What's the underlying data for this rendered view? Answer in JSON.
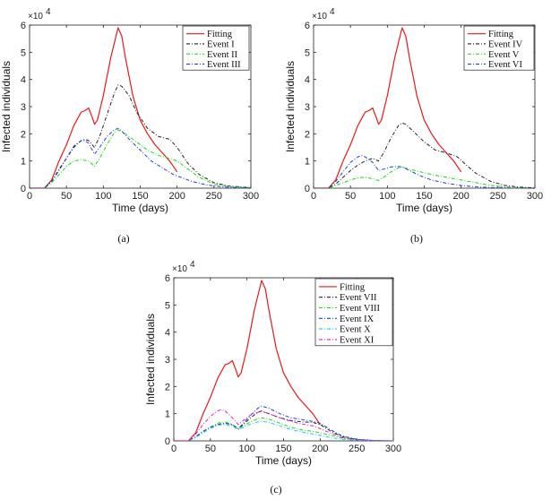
{
  "chart_data": [
    {
      "type": "line",
      "caption": "(a)",
      "xlabel": "Time (days)",
      "ylabel": "Infected individuals",
      "y_multiplier": "×10",
      "y_multiplier_exp": "4",
      "xlim": [
        0,
        300
      ],
      "ylim": [
        0,
        6
      ],
      "xticks": [
        "0",
        "50",
        "100",
        "150",
        "200",
        "250",
        "300"
      ],
      "yticks": [
        "0",
        "1",
        "2",
        "3",
        "4",
        "5",
        "6"
      ],
      "legend_position": "top-right",
      "series": [
        {
          "name": "Fitting",
          "color": "#e41a1c",
          "dash": "solid",
          "x": [
            0,
            20,
            30,
            40,
            50,
            60,
            70,
            75,
            80,
            85,
            88,
            92,
            100,
            110,
            120,
            125,
            130,
            140,
            150,
            160,
            170,
            180,
            190,
            200
          ],
          "y": [
            0,
            0,
            0.3,
            1.0,
            1.6,
            2.3,
            2.8,
            2.85,
            2.95,
            2.6,
            2.35,
            2.5,
            3.4,
            4.8,
            5.9,
            5.6,
            4.8,
            3.4,
            2.5,
            2.0,
            1.6,
            1.3,
            1.0,
            0.6
          ]
        },
        {
          "name": "Event I",
          "color": "#222222",
          "dash": "dashdot",
          "x": [
            0,
            20,
            30,
            40,
            50,
            60,
            70,
            75,
            80,
            88,
            95,
            105,
            115,
            120,
            125,
            135,
            145,
            160,
            175,
            190,
            200,
            215,
            230,
            250,
            270,
            300
          ],
          "y": [
            0,
            0,
            0.25,
            0.7,
            1.1,
            1.5,
            1.75,
            1.8,
            1.75,
            1.5,
            1.9,
            2.7,
            3.5,
            3.8,
            3.75,
            3.4,
            2.8,
            2.2,
            1.9,
            1.8,
            1.5,
            0.9,
            0.5,
            0.2,
            0.08,
            0.02
          ]
        },
        {
          "name": "Event II",
          "color": "#1fd01f",
          "dash": "dashdot",
          "x": [
            0,
            20,
            30,
            40,
            50,
            60,
            70,
            80,
            88,
            95,
            105,
            115,
            120,
            130,
            145,
            160,
            175,
            190,
            200,
            215,
            230,
            250,
            270,
            300
          ],
          "y": [
            0,
            0,
            0.2,
            0.5,
            0.8,
            1.0,
            1.05,
            1.0,
            0.8,
            1.1,
            1.6,
            2.05,
            2.15,
            2.0,
            1.7,
            1.4,
            1.2,
            1.1,
            1.0,
            0.7,
            0.4,
            0.15,
            0.06,
            0.02
          ]
        },
        {
          "name": "Event III",
          "color": "#2040d0",
          "dash": "dashdot",
          "x": [
            0,
            20,
            30,
            40,
            50,
            60,
            70,
            75,
            80,
            88,
            95,
            105,
            115,
            120,
            125,
            135,
            150,
            165,
            180,
            195,
            205,
            220,
            240,
            260,
            280,
            300
          ],
          "y": [
            0,
            0,
            0.25,
            0.65,
            1.1,
            1.55,
            1.75,
            1.75,
            1.65,
            1.25,
            1.5,
            1.9,
            2.15,
            2.2,
            2.1,
            1.8,
            1.4,
            1.0,
            0.75,
            0.5,
            0.4,
            0.25,
            0.12,
            0.05,
            0.02,
            0
          ]
        }
      ]
    },
    {
      "type": "line",
      "caption": "(b)",
      "xlabel": "Time (days)",
      "ylabel": "Infected individuals",
      "y_multiplier": "×10",
      "y_multiplier_exp": "4",
      "xlim": [
        0,
        300
      ],
      "ylim": [
        0,
        6
      ],
      "xticks": [
        "0",
        "50",
        "100",
        "150",
        "200",
        "250",
        "300"
      ],
      "yticks": [
        "0",
        "1",
        "2",
        "3",
        "4",
        "5",
        "6"
      ],
      "legend_position": "top-right",
      "series": [
        {
          "name": "Fitting",
          "color": "#e41a1c",
          "dash": "solid",
          "x": [
            0,
            20,
            30,
            40,
            50,
            60,
            70,
            75,
            80,
            85,
            88,
            92,
            100,
            110,
            120,
            125,
            130,
            140,
            150,
            160,
            170,
            180,
            190,
            200
          ],
          "y": [
            0,
            0,
            0.3,
            1.0,
            1.6,
            2.3,
            2.8,
            2.85,
            2.95,
            2.6,
            2.35,
            2.5,
            3.4,
            4.8,
            5.9,
            5.6,
            4.8,
            3.4,
            2.5,
            2.0,
            1.6,
            1.3,
            1.0,
            0.6
          ]
        },
        {
          "name": "Event IV",
          "color": "#222222",
          "dash": "dashdot",
          "x": [
            0,
            20,
            30,
            40,
            50,
            60,
            70,
            80,
            88,
            95,
            105,
            115,
            120,
            125,
            135,
            150,
            165,
            180,
            195,
            205,
            220,
            240,
            260,
            280,
            300
          ],
          "y": [
            0,
            0,
            0.15,
            0.4,
            0.65,
            0.85,
            1.0,
            1.1,
            1.0,
            1.3,
            1.85,
            2.3,
            2.4,
            2.35,
            2.1,
            1.7,
            1.4,
            1.3,
            1.15,
            0.9,
            0.55,
            0.25,
            0.1,
            0.04,
            0.01
          ]
        },
        {
          "name": "Event V",
          "color": "#1fd01f",
          "dash": "dashdot",
          "x": [
            0,
            20,
            30,
            40,
            50,
            60,
            70,
            80,
            88,
            95,
            105,
            115,
            120,
            130,
            145,
            160,
            180,
            200,
            220,
            240,
            260,
            280,
            300
          ],
          "y": [
            0,
            0,
            0.1,
            0.2,
            0.3,
            0.38,
            0.4,
            0.35,
            0.28,
            0.4,
            0.6,
            0.75,
            0.78,
            0.7,
            0.6,
            0.5,
            0.4,
            0.3,
            0.2,
            0.1,
            0.05,
            0.02,
            0
          ]
        },
        {
          "name": "Event VI",
          "color": "#2040d0",
          "dash": "dashdot",
          "x": [
            0,
            20,
            30,
            40,
            50,
            60,
            65,
            70,
            80,
            88,
            95,
            105,
            115,
            120,
            130,
            145,
            160,
            180,
            200,
            220,
            240,
            260,
            280,
            300
          ],
          "y": [
            0,
            0,
            0.25,
            0.6,
            0.95,
            1.15,
            1.2,
            1.15,
            0.95,
            0.65,
            0.7,
            0.78,
            0.8,
            0.78,
            0.65,
            0.45,
            0.3,
            0.18,
            0.1,
            0.05,
            0.02,
            0.01,
            0,
            0
          ]
        }
      ]
    },
    {
      "type": "line",
      "caption": "(c)",
      "xlabel": "Time (days)",
      "ylabel": "Infected individuals",
      "y_multiplier": "×10",
      "y_multiplier_exp": "4",
      "xlim": [
        0,
        300
      ],
      "ylim": [
        0,
        6
      ],
      "xticks": [
        "0",
        "50",
        "100",
        "150",
        "200",
        "250",
        "300"
      ],
      "yticks": [
        "0",
        "1",
        "2",
        "3",
        "4",
        "5",
        "6"
      ],
      "legend_position": "top-right",
      "series": [
        {
          "name": "Fitting",
          "color": "#e41a1c",
          "dash": "solid",
          "x": [
            0,
            20,
            30,
            40,
            50,
            60,
            70,
            75,
            80,
            85,
            88,
            92,
            100,
            110,
            120,
            125,
            130,
            140,
            150,
            160,
            170,
            180,
            190,
            200
          ],
          "y": [
            0,
            0,
            0.3,
            1.0,
            1.6,
            2.3,
            2.8,
            2.85,
            2.95,
            2.6,
            2.35,
            2.5,
            3.4,
            4.8,
            5.9,
            5.6,
            4.8,
            3.4,
            2.5,
            2.0,
            1.6,
            1.3,
            1.0,
            0.6
          ]
        },
        {
          "name": "Event VII",
          "color": "#222222",
          "dash": "dashdot",
          "x": [
            0,
            20,
            30,
            40,
            50,
            60,
            70,
            80,
            88,
            95,
            105,
            115,
            120,
            130,
            145,
            160,
            175,
            190,
            200,
            215,
            230,
            250,
            270,
            300
          ],
          "y": [
            0,
            0,
            0.15,
            0.35,
            0.5,
            0.6,
            0.65,
            0.6,
            0.45,
            0.6,
            0.85,
            1.05,
            1.1,
            1.0,
            0.85,
            0.75,
            0.7,
            0.68,
            0.6,
            0.35,
            0.15,
            0.05,
            0.02,
            0
          ]
        },
        {
          "name": "Event VIII",
          "color": "#1fd01f",
          "dash": "dashdot",
          "x": [
            0,
            20,
            30,
            40,
            50,
            60,
            70,
            80,
            88,
            95,
            105,
            115,
            120,
            130,
            145,
            160,
            175,
            190,
            200,
            215,
            230,
            250,
            270,
            300
          ],
          "y": [
            0,
            0,
            0.15,
            0.35,
            0.5,
            0.65,
            0.7,
            0.6,
            0.45,
            0.55,
            0.7,
            0.82,
            0.85,
            0.8,
            0.65,
            0.5,
            0.4,
            0.35,
            0.3,
            0.2,
            0.1,
            0.04,
            0.01,
            0
          ]
        },
        {
          "name": "Event IX",
          "color": "#2040d0",
          "dash": "dashdot",
          "x": [
            0,
            20,
            30,
            40,
            50,
            60,
            70,
            80,
            88,
            95,
            105,
            115,
            120,
            130,
            145,
            160,
            175,
            190,
            200,
            215,
            230,
            250,
            270,
            300
          ],
          "y": [
            0,
            0,
            0.15,
            0.35,
            0.5,
            0.6,
            0.65,
            0.6,
            0.45,
            0.65,
            0.95,
            1.2,
            1.28,
            1.2,
            1.0,
            0.85,
            0.78,
            0.72,
            0.65,
            0.4,
            0.18,
            0.06,
            0.02,
            0
          ]
        },
        {
          "name": "Event X",
          "color": "#20c8e0",
          "dash": "dashdot",
          "x": [
            0,
            20,
            30,
            40,
            50,
            60,
            70,
            80,
            88,
            95,
            105,
            115,
            120,
            130,
            145,
            160,
            175,
            190,
            200,
            215,
            230,
            250,
            270,
            300
          ],
          "y": [
            0,
            0,
            0.12,
            0.3,
            0.45,
            0.58,
            0.6,
            0.55,
            0.4,
            0.5,
            0.62,
            0.7,
            0.72,
            0.68,
            0.55,
            0.42,
            0.32,
            0.25,
            0.2,
            0.12,
            0.06,
            0.02,
            0.01,
            0
          ]
        },
        {
          "name": "Event XI",
          "color": "#e020c8",
          "dash": "dashdot",
          "x": [
            0,
            20,
            30,
            40,
            50,
            60,
            65,
            70,
            80,
            88,
            95,
            105,
            115,
            120,
            130,
            145,
            160,
            175,
            190,
            200,
            215,
            230,
            250,
            270,
            300
          ],
          "y": [
            0,
            0,
            0.25,
            0.6,
            0.9,
            1.1,
            1.15,
            1.1,
            0.85,
            0.6,
            0.75,
            0.95,
            1.05,
            1.08,
            1.0,
            0.85,
            0.72,
            0.62,
            0.55,
            0.45,
            0.28,
            0.12,
            0.04,
            0.01,
            0
          ]
        }
      ]
    }
  ]
}
